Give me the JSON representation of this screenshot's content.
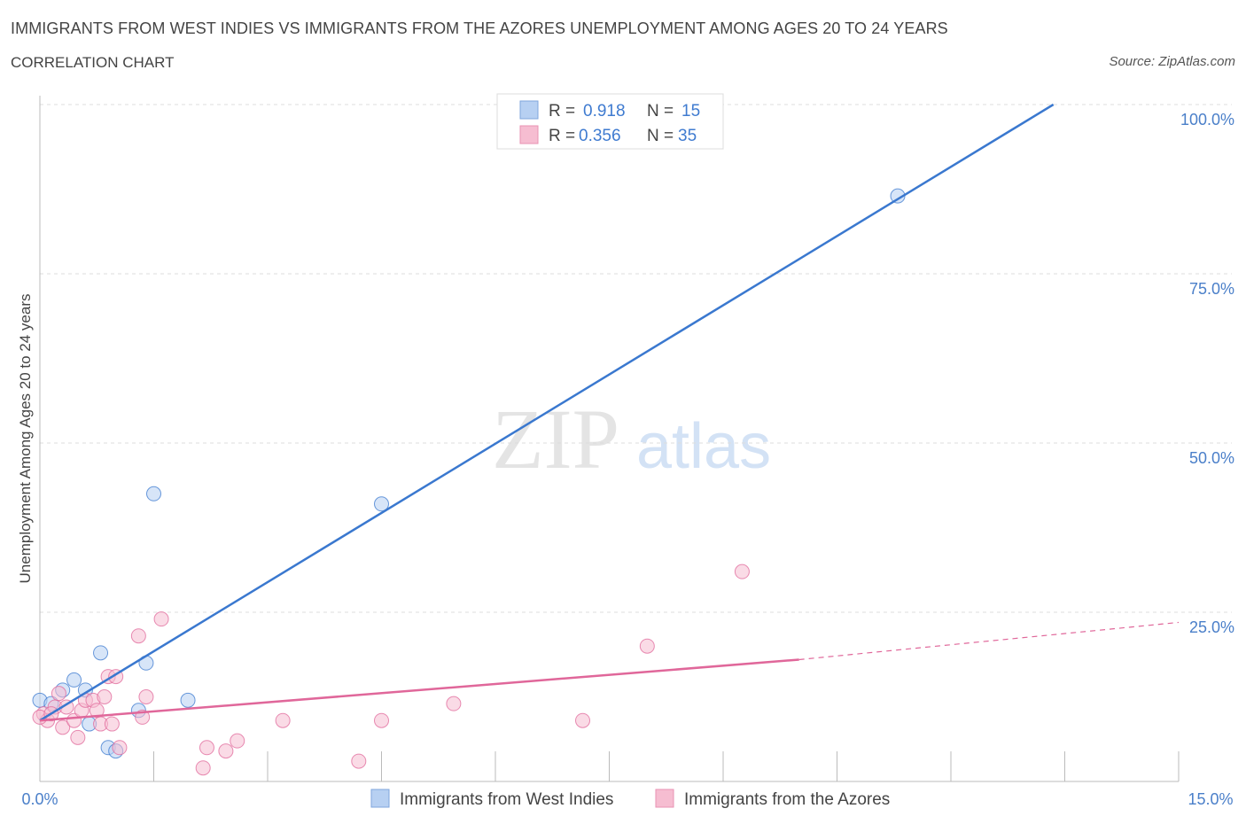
{
  "title": "IMMIGRANTS FROM WEST INDIES VS IMMIGRANTS FROM THE AZORES UNEMPLOYMENT AMONG AGES 20 TO 24 YEARS",
  "subtitle": "CORRELATION CHART",
  "source": "Source: ZipAtlas.com",
  "watermark": {
    "zip": "ZIP",
    "atlas": "atlas"
  },
  "colors": {
    "blue": "#3a78cf",
    "blue_fill": "#b7d0f2",
    "pink": "#e0679a",
    "pink_fill": "#f6bdd1",
    "grid": "#dddddd",
    "tick_label": "#4a7fc9"
  },
  "legend_top": [
    {
      "name": "Immigrants from West Indies",
      "r_label": "R =",
      "r_value": "0.918",
      "n_label": "N =",
      "n_value": "15",
      "color": "blue"
    },
    {
      "name": "Immigrants from the Azores",
      "r_label": "R =",
      "r_value": "0.356",
      "n_label": "N =",
      "n_value": "35",
      "color": "pink"
    }
  ],
  "chart_data": {
    "type": "scatter",
    "title": "IMMIGRANTS FROM WEST INDIES VS IMMIGRANTS FROM THE AZORES UNEMPLOYMENT AMONG AGES 20 TO 24 YEARS",
    "xlabel": "",
    "ylabel": "Unemployment Among Ages 20 to 24 years",
    "xlim": [
      0,
      15
    ],
    "ylim": [
      0,
      100
    ],
    "x_tick_labels": [
      "0.0%",
      "15.0%"
    ],
    "y_ticks": [
      25,
      50,
      75,
      100
    ],
    "y_tick_labels": [
      "25.0%",
      "50.0%",
      "75.0%",
      "100.0%"
    ],
    "grid": true,
    "legend_position": "bottom",
    "series": [
      {
        "name": "Immigrants from West Indies",
        "color": "blue",
        "points": [
          [
            0.0,
            12.0
          ],
          [
            0.15,
            11.5
          ],
          [
            0.3,
            13.5
          ],
          [
            0.45,
            15.0
          ],
          [
            0.6,
            13.5
          ],
          [
            0.65,
            8.5
          ],
          [
            0.8,
            19.0
          ],
          [
            0.9,
            5.0
          ],
          [
            1.0,
            4.5
          ],
          [
            1.3,
            10.5
          ],
          [
            1.4,
            17.5
          ],
          [
            1.5,
            42.5
          ],
          [
            1.95,
            12.0
          ],
          [
            4.5,
            41.0
          ],
          [
            11.3,
            86.5
          ]
        ],
        "trend": {
          "x0": 0.0,
          "y0": 9.0,
          "x1": 13.35,
          "y1": 100.0,
          "dashed_to": null
        }
      },
      {
        "name": "Immigrants from the Azores",
        "color": "pink",
        "points": [
          [
            0.05,
            10.0
          ],
          [
            0.1,
            9.0
          ],
          [
            0.2,
            11.0
          ],
          [
            0.25,
            13.0
          ],
          [
            0.3,
            8.0
          ],
          [
            0.35,
            11.0
          ],
          [
            0.45,
            9.0
          ],
          [
            0.5,
            6.5
          ],
          [
            0.55,
            10.5
          ],
          [
            0.6,
            12.0
          ],
          [
            0.7,
            12.0
          ],
          [
            0.75,
            10.5
          ],
          [
            0.8,
            8.5
          ],
          [
            0.85,
            12.5
          ],
          [
            0.9,
            15.5
          ],
          [
            0.95,
            8.5
          ],
          [
            1.0,
            15.5
          ],
          [
            1.05,
            5.0
          ],
          [
            1.3,
            21.5
          ],
          [
            1.35,
            9.5
          ],
          [
            1.4,
            12.5
          ],
          [
            1.6,
            24.0
          ],
          [
            2.15,
            2.0
          ],
          [
            2.2,
            5.0
          ],
          [
            2.45,
            4.5
          ],
          [
            2.6,
            6.0
          ],
          [
            3.2,
            9.0
          ],
          [
            4.2,
            3.0
          ],
          [
            4.5,
            9.0
          ],
          [
            5.45,
            11.5
          ],
          [
            7.15,
            9.0
          ],
          [
            8.0,
            20.0
          ],
          [
            9.25,
            31.0
          ],
          [
            0.0,
            9.5
          ],
          [
            0.15,
            10.0
          ]
        ],
        "trend": {
          "x0": 0.0,
          "y0": 9.0,
          "x1": 10.0,
          "y1": 18.0,
          "dashed_to": {
            "x": 15.0,
            "y": 23.5
          }
        }
      }
    ]
  }
}
